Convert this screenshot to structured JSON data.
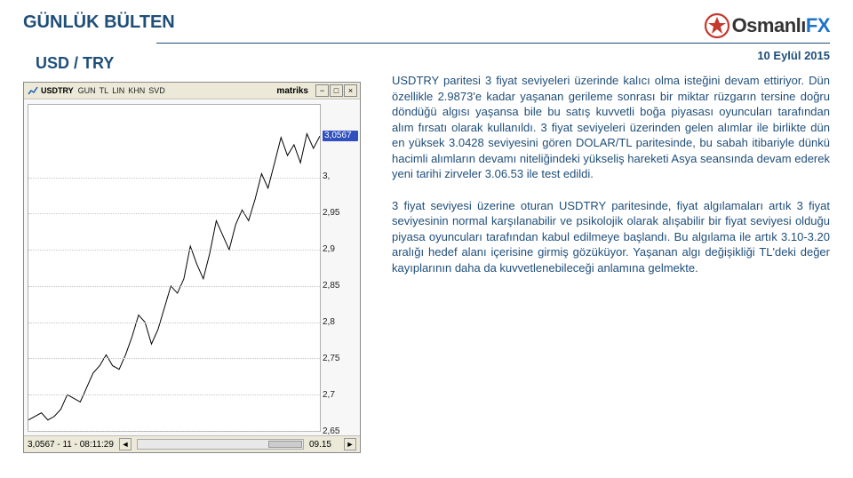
{
  "header": {
    "bulletin_title": "GÜNLÜK BÜLTEN",
    "logo_name": "Osmanlı",
    "logo_fx": "FX"
  },
  "left": {
    "pair_title": "USD / TRY",
    "chart": {
      "titlebar": {
        "symbol": "USDTRY",
        "buttons": [
          "GUN",
          "TL",
          "LIN",
          "KHN",
          "SVD"
        ],
        "brand": "matriks",
        "window_buttons": [
          "−",
          "□",
          "×"
        ]
      },
      "y_axis": {
        "min": 2.65,
        "max": 3.1,
        "ticks": [
          {
            "label": "3,0567",
            "value": 3.0567,
            "highlight": true
          },
          {
            "label": "3,",
            "value": 3.0,
            "highlight": false
          },
          {
            "label": "2,95",
            "value": 2.95,
            "highlight": false
          },
          {
            "label": "2,9",
            "value": 2.9,
            "highlight": false
          },
          {
            "label": "2,85",
            "value": 2.85,
            "highlight": false
          },
          {
            "label": "2,8",
            "value": 2.8,
            "highlight": false
          },
          {
            "label": "2,75",
            "value": 2.75,
            "highlight": false
          },
          {
            "label": "2,7",
            "value": 2.7,
            "highlight": false
          },
          {
            "label": "2,65",
            "value": 2.65,
            "highlight": false
          }
        ],
        "gridline_color": "#c8c8c8"
      },
      "series": {
        "type": "line",
        "color": "#000000",
        "width": 1,
        "values": [
          2.665,
          2.67,
          2.675,
          2.665,
          2.67,
          2.68,
          2.7,
          2.695,
          2.69,
          2.71,
          2.73,
          2.74,
          2.755,
          2.74,
          2.735,
          2.755,
          2.78,
          2.81,
          2.8,
          2.77,
          2.79,
          2.82,
          2.85,
          2.84,
          2.86,
          2.905,
          2.88,
          2.86,
          2.895,
          2.94,
          2.92,
          2.9,
          2.935,
          2.955,
          2.94,
          2.97,
          3.005,
          2.985,
          3.02,
          3.055,
          3.03,
          3.045,
          3.02,
          3.06,
          3.04,
          3.057
        ]
      },
      "statusbar": {
        "left_text": "3,0567 - 11 - 08:11:29",
        "x_label": "09.15"
      },
      "background_color": "#ffffff",
      "window_chrome_color": "#ece9d8"
    }
  },
  "right": {
    "date": "10 Eylül 2015",
    "para1": "USDTRY paritesi 3 fiyat seviyeleri üzerinde kalıcı olma isteğini devam ettiriyor. Dün özellikle 2.9873'e kadar yaşanan gerileme sonrası bir miktar rüzgarın tersine doğru döndüğü algısı yaşansa bile bu satış kuvvetli boğa piyasası oyuncuları tarafından alım fırsatı olarak kullanıldı. 3 fiyat seviyeleri üzerinden gelen alımlar ile birlikte dün en yüksek 3.0428 seviyesini gören DOLAR/TL paritesinde, bu sabah itibariyle dünkü hacimli alımların devamı niteliğindeki yükseliş hareketi Asya seansında devam ederek yeni tarihi zirveler 3.06.53 ile test edildi.",
    "para2": "3 fiyat seviyesi üzerine oturan USDTRY paritesinde, fiyat algılamaları artık 3 fiyat seviyesinin normal karşılanabilir ve psikolojik olarak alışabilir bir fiyat seviyesi olduğu piyasa oyuncuları tarafından kabul edilmeye başlandı. Bu algılama ile artık 3.10-3.20 aralığı hedef alanı içerisine girmiş gözüküyor. Yaşanan algı değişikliği TL'deki değer kayıplarının daha da kuvvetlenebileceği anlamına gelmekte."
  },
  "colors": {
    "brand_text": "#1f4e79",
    "logo_blue": "#1e73c9",
    "logo_red": "#c53a2f"
  }
}
